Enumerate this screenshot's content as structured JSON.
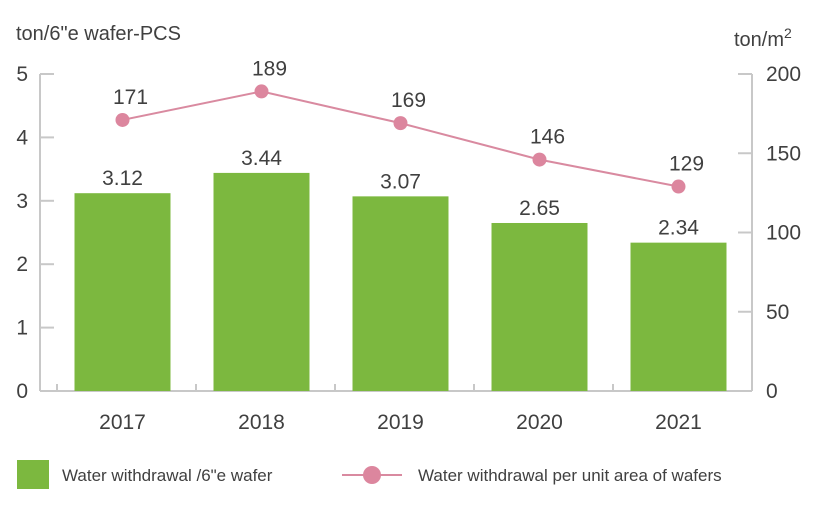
{
  "colors": {
    "bar": "#7cb83f",
    "line": "#d98aa0",
    "marker": "#dc869e",
    "axis": "#c8c8c8",
    "text": "#404040"
  },
  "chart_data": {
    "type": "bar",
    "categories": [
      "2017",
      "2018",
      "2019",
      "2020",
      "2021"
    ],
    "series": [
      {
        "name": "Water withdrawal /6\"e wafer",
        "type": "bar",
        "axis": "left",
        "values": [
          3.12,
          3.44,
          3.07,
          2.65,
          2.34
        ],
        "labels": [
          "3.12",
          "3.44",
          "3.07",
          "2.65",
          "2.34"
        ]
      },
      {
        "name": "Water withdrawal per unit area of wafers",
        "type": "line",
        "axis": "right",
        "values": [
          171,
          189,
          169,
          146,
          129
        ],
        "labels": [
          "171",
          "189",
          "169",
          "146",
          "129"
        ]
      }
    ],
    "y_left": {
      "label": "ton/6\"e wafer-PCS",
      "ylim": [
        0,
        5
      ],
      "ticks": [
        "0",
        "1",
        "2",
        "3",
        "4",
        "5"
      ]
    },
    "y_right": {
      "label": "ton/m",
      "label_sup": "2",
      "ylim": [
        0,
        200
      ],
      "ticks": [
        "0",
        "50",
        "100",
        "150",
        "200"
      ]
    },
    "grid": false,
    "legend_position": "bottom"
  }
}
